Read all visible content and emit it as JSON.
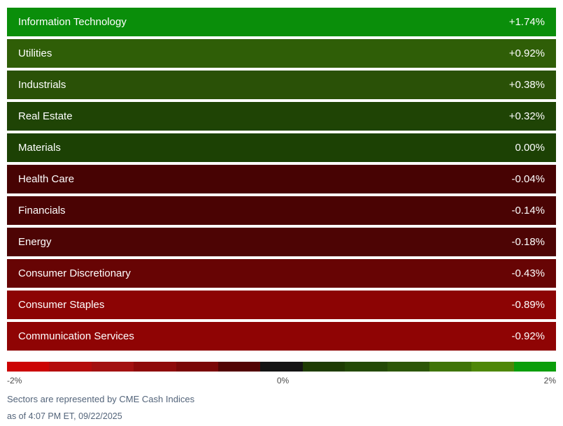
{
  "chart_data": {
    "type": "heatmap",
    "title": "",
    "categories": [
      "Information Technology",
      "Utilities",
      "Industrials",
      "Real Estate",
      "Materials",
      "Health Care",
      "Financials",
      "Energy",
      "Consumer Discretionary",
      "Consumer Staples",
      "Communication Services"
    ],
    "values": [
      1.74,
      0.92,
      0.38,
      0.32,
      0.0,
      -0.04,
      -0.14,
      -0.18,
      -0.43,
      -0.89,
      -0.92
    ],
    "value_labels": [
      "+1.74%",
      "+0.92%",
      "+0.38%",
      "+0.32%",
      "0.00%",
      "-0.04%",
      "-0.14%",
      "-0.18%",
      "-0.43%",
      "-0.89%",
      "-0.92%"
    ],
    "row_colors": [
      "#0a8e0a",
      "#2f5e07",
      "#2a5107",
      "#1f4405",
      "#1c4104",
      "#470303",
      "#4a0303",
      "#4d0404",
      "#670404",
      "#8c0404",
      "#8f0404"
    ],
    "scale": {
      "min": -2,
      "max": 2,
      "min_label": "-2%",
      "mid_label": "0%",
      "max_label": "2%",
      "colors": [
        "#cc0303",
        "#b40c0c",
        "#a31111",
        "#8e0a0a",
        "#7a0707",
        "#520404",
        "#141414",
        "#1e3c03",
        "#234906",
        "#2c5607",
        "#3f7408",
        "#4e8708",
        "#0a9e0a"
      ]
    },
    "legend_position": "bottom",
    "grid": false
  },
  "footer": {
    "source": "Sectors are represented by CME Cash Indices",
    "timestamp": "as of 4:07 PM ET, 09/22/2025"
  }
}
